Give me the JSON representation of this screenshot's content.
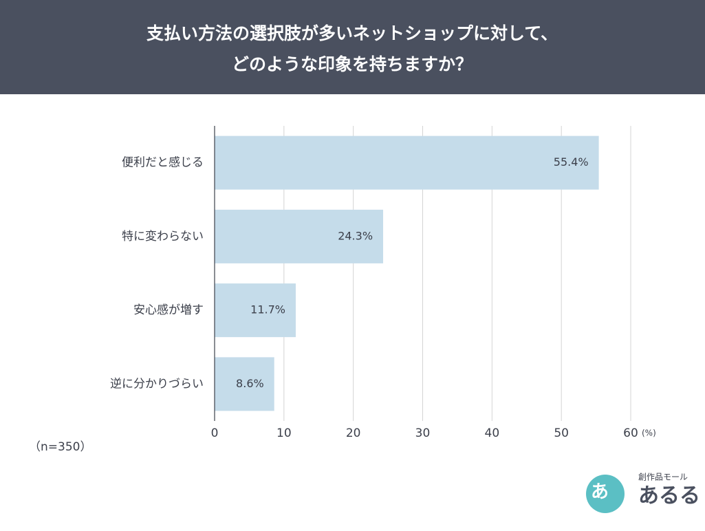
{
  "chart_data": {
    "type": "bar",
    "orientation": "horizontal",
    "title": [
      "支払い方法の選択肢が多いネットショップに対して、",
      "どのような印象を持ちますか？"
    ],
    "categories": [
      "便利だと感じる",
      "特に変わらない",
      "安心感が増す",
      "逆に分かりづらい"
    ],
    "values": [
      55.4,
      24.3,
      11.7,
      8.6
    ],
    "value_labels": [
      "55.4%",
      "24.3%",
      "11.7%",
      "8.6%"
    ],
    "color": "#c5dcea",
    "xlim": [
      0,
      60
    ],
    "xticks": [
      0,
      10,
      20,
      30,
      40,
      50,
      60
    ],
    "x_unit": "(%)",
    "note": "（n=350）",
    "grid": true
  },
  "logo": {
    "tagline": "創作品モール",
    "name": "あるる",
    "mark": "あ"
  }
}
